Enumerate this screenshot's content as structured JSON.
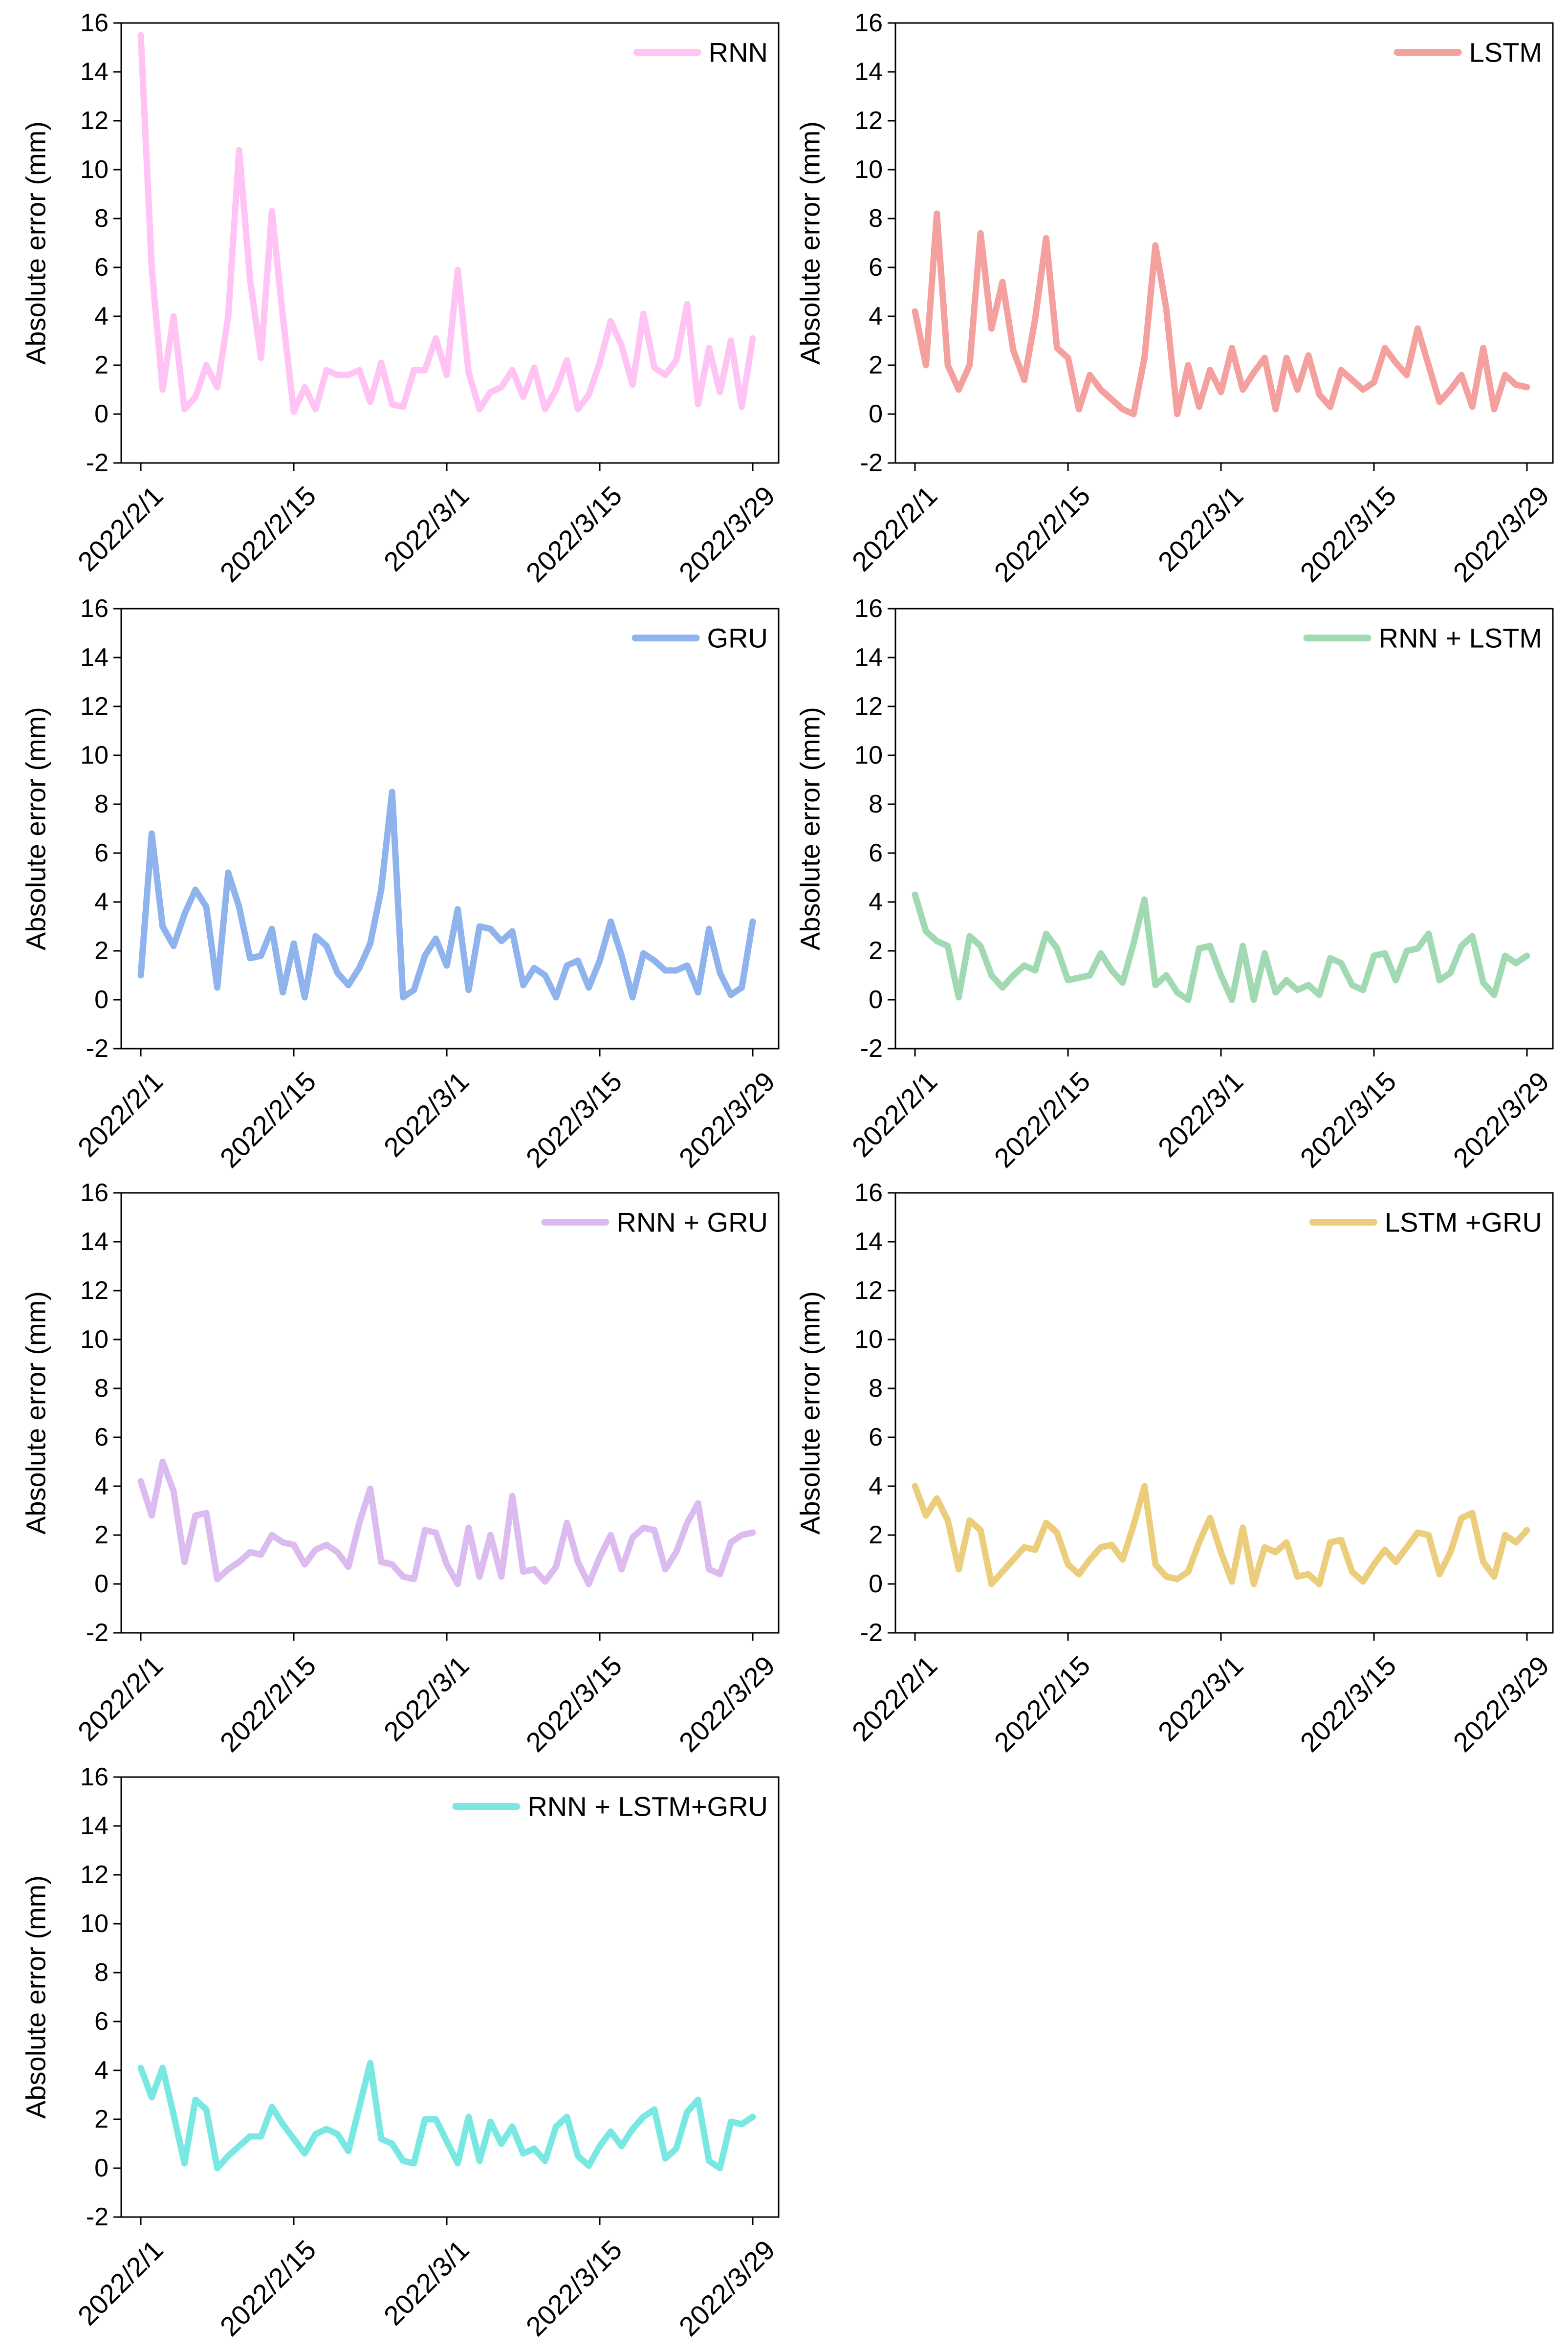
{
  "chart_data": [
    {
      "type": "line",
      "ylabel": "Absolute error (mm)",
      "ylim": [
        -2,
        16
      ],
      "yticks": [
        -2,
        0,
        2,
        4,
        6,
        8,
        10,
        12,
        14,
        16
      ],
      "xlim": [
        0,
        56
      ],
      "xticks": [
        {
          "day": 0,
          "label": "2022/2/1"
        },
        {
          "day": 14,
          "label": "2022/2/15"
        },
        {
          "day": 28,
          "label": "2022/3/1"
        },
        {
          "day": 42,
          "label": "2022/3/15"
        },
        {
          "day": 56,
          "label": "2022/3/29"
        }
      ],
      "legend_position": "top-right",
      "series": [
        {
          "name": "RNN",
          "color": "#ffc4f4",
          "values": [
            15.5,
            6.0,
            1.0,
            4.0,
            0.2,
            0.7,
            2.0,
            1.1,
            4.0,
            10.8,
            5.5,
            2.3,
            8.3,
            4.0,
            0.1,
            1.1,
            0.2,
            1.8,
            1.6,
            1.6,
            1.8,
            0.5,
            2.1,
            0.4,
            0.3,
            1.8,
            1.8,
            3.1,
            1.6,
            5.9,
            1.7,
            0.2,
            0.9,
            1.1,
            1.8,
            0.7,
            1.9,
            0.2,
            1.0,
            2.2,
            0.2,
            0.8,
            2.1,
            3.8,
            2.8,
            1.2,
            4.1,
            1.9,
            1.6,
            2.2,
            4.5,
            0.4,
            2.7,
            0.9,
            3.0,
            0.3,
            3.1
          ]
        }
      ]
    },
    {
      "type": "line",
      "ylabel": "Absolute error (mm)",
      "ylim": [
        -2,
        16
      ],
      "yticks": [
        -2,
        0,
        2,
        4,
        6,
        8,
        10,
        12,
        14,
        16
      ],
      "xlim": [
        0,
        56
      ],
      "xticks": [
        {
          "day": 0,
          "label": "2022/2/1"
        },
        {
          "day": 14,
          "label": "2022/2/15"
        },
        {
          "day": 28,
          "label": "2022/3/1"
        },
        {
          "day": 42,
          "label": "2022/3/15"
        },
        {
          "day": 56,
          "label": "2022/3/29"
        }
      ],
      "legend_position": "top-right",
      "series": [
        {
          "name": "LSTM",
          "color": "#f4a09f",
          "values": [
            4.2,
            2.0,
            8.2,
            2.0,
            1.0,
            2.0,
            7.4,
            3.5,
            5.4,
            2.6,
            1.4,
            3.9,
            7.2,
            2.7,
            2.3,
            0.2,
            1.6,
            1.0,
            0.6,
            0.2,
            0.0,
            2.3,
            6.9,
            4.3,
            0.0,
            2.0,
            0.3,
            1.8,
            0.9,
            2.7,
            1.0,
            1.7,
            2.3,
            0.2,
            2.3,
            1.0,
            2.4,
            0.8,
            0.3,
            1.8,
            1.4,
            1.0,
            1.3,
            2.7,
            2.1,
            1.6,
            3.5,
            2.0,
            0.5,
            1.0,
            1.6,
            0.3,
            2.7,
            0.2,
            1.6,
            1.2,
            1.1
          ]
        }
      ]
    },
    {
      "type": "line",
      "ylabel": "Absolute error (mm)",
      "ylim": [
        -2,
        16
      ],
      "yticks": [
        -2,
        0,
        2,
        4,
        6,
        8,
        10,
        12,
        14,
        16
      ],
      "xlim": [
        0,
        56
      ],
      "xticks": [
        {
          "day": 0,
          "label": "2022/2/1"
        },
        {
          "day": 14,
          "label": "2022/2/15"
        },
        {
          "day": 28,
          "label": "2022/3/1"
        },
        {
          "day": 42,
          "label": "2022/3/15"
        },
        {
          "day": 56,
          "label": "2022/3/29"
        }
      ],
      "legend_position": "top-right",
      "series": [
        {
          "name": "GRU",
          "color": "#8fb3ec",
          "values": [
            1.0,
            6.8,
            3.0,
            2.2,
            3.5,
            4.5,
            3.8,
            0.5,
            5.2,
            3.8,
            1.7,
            1.8,
            2.9,
            0.3,
            2.3,
            0.1,
            2.6,
            2.2,
            1.1,
            0.6,
            1.3,
            2.3,
            4.5,
            8.5,
            0.1,
            0.4,
            1.8,
            2.5,
            1.4,
            3.7,
            0.4,
            3.0,
            2.9,
            2.4,
            2.8,
            0.6,
            1.3,
            1.0,
            0.1,
            1.4,
            1.6,
            0.5,
            1.6,
            3.2,
            1.8,
            0.1,
            1.9,
            1.6,
            1.2,
            1.2,
            1.4,
            0.3,
            2.9,
            1.1,
            0.2,
            0.5,
            3.2
          ]
        }
      ]
    },
    {
      "type": "line",
      "ylabel": "Absolute error (mm)",
      "ylim": [
        -2,
        16
      ],
      "yticks": [
        -2,
        0,
        2,
        4,
        6,
        8,
        10,
        12,
        14,
        16
      ],
      "xlim": [
        0,
        56
      ],
      "xticks": [
        {
          "day": 0,
          "label": "2022/2/1"
        },
        {
          "day": 14,
          "label": "2022/2/15"
        },
        {
          "day": 28,
          "label": "2022/3/1"
        },
        {
          "day": 42,
          "label": "2022/3/15"
        },
        {
          "day": 56,
          "label": "2022/3/29"
        }
      ],
      "legend_position": "top-right",
      "series": [
        {
          "name": "RNN + LSTM",
          "color": "#a0d9b2",
          "values": [
            4.3,
            2.8,
            2.4,
            2.2,
            0.1,
            2.6,
            2.2,
            1.0,
            0.5,
            1.0,
            1.4,
            1.2,
            2.7,
            2.1,
            0.8,
            0.9,
            1.0,
            1.9,
            1.2,
            0.7,
            2.3,
            4.1,
            0.6,
            1.0,
            0.3,
            0.0,
            2.1,
            2.2,
            1.0,
            0.0,
            2.2,
            0.0,
            1.9,
            0.3,
            0.8,
            0.4,
            0.6,
            0.2,
            1.7,
            1.5,
            0.6,
            0.4,
            1.8,
            1.9,
            0.8,
            2.0,
            2.1,
            2.7,
            0.8,
            1.1,
            2.2,
            2.6,
            0.7,
            0.2,
            1.8,
            1.5,
            1.8
          ]
        }
      ]
    },
    {
      "type": "line",
      "ylabel": "Absolute error (mm)",
      "ylim": [
        -2,
        16
      ],
      "yticks": [
        -2,
        0,
        2,
        4,
        6,
        8,
        10,
        12,
        14,
        16
      ],
      "xlim": [
        0,
        56
      ],
      "xticks": [
        {
          "day": 0,
          "label": "2022/2/1"
        },
        {
          "day": 14,
          "label": "2022/2/15"
        },
        {
          "day": 28,
          "label": "2022/3/1"
        },
        {
          "day": 42,
          "label": "2022/3/15"
        },
        {
          "day": 56,
          "label": "2022/3/29"
        }
      ],
      "legend_position": "top-right",
      "series": [
        {
          "name": "RNN + GRU",
          "color": "#dcbbf0",
          "values": [
            4.2,
            2.8,
            5.0,
            3.8,
            0.9,
            2.8,
            2.9,
            0.2,
            0.6,
            0.9,
            1.3,
            1.2,
            2.0,
            1.7,
            1.6,
            0.8,
            1.4,
            1.6,
            1.3,
            0.7,
            2.5,
            3.9,
            0.9,
            0.8,
            0.3,
            0.2,
            2.2,
            2.1,
            0.8,
            0.0,
            2.3,
            0.3,
            2.0,
            0.3,
            3.6,
            0.5,
            0.6,
            0.1,
            0.7,
            2.5,
            0.9,
            0.0,
            1.1,
            2.0,
            0.6,
            1.9,
            2.3,
            2.2,
            0.6,
            1.3,
            2.5,
            3.3,
            0.6,
            0.4,
            1.7,
            2.0,
            2.1
          ]
        }
      ]
    },
    {
      "type": "line",
      "ylabel": "Absolute error (mm)",
      "ylim": [
        -2,
        16
      ],
      "yticks": [
        -2,
        0,
        2,
        4,
        6,
        8,
        10,
        12,
        14,
        16
      ],
      "xlim": [
        0,
        56
      ],
      "xticks": [
        {
          "day": 0,
          "label": "2022/2/1"
        },
        {
          "day": 14,
          "label": "2022/2/15"
        },
        {
          "day": 28,
          "label": "2022/3/1"
        },
        {
          "day": 42,
          "label": "2022/3/15"
        },
        {
          "day": 56,
          "label": "2022/3/29"
        }
      ],
      "legend_position": "top-right",
      "series": [
        {
          "name": "LSTM +GRU",
          "color": "#ebcd7c",
          "values": [
            4.0,
            2.8,
            3.5,
            2.6,
            0.6,
            2.6,
            2.2,
            0.0,
            0.5,
            1.0,
            1.5,
            1.4,
            2.5,
            2.1,
            0.8,
            0.4,
            1.0,
            1.5,
            1.6,
            1.0,
            2.4,
            4.0,
            0.8,
            0.3,
            0.2,
            0.5,
            1.7,
            2.7,
            1.3,
            0.1,
            2.3,
            0.0,
            1.5,
            1.3,
            1.7,
            0.3,
            0.4,
            0.0,
            1.7,
            1.8,
            0.5,
            0.1,
            0.8,
            1.4,
            0.9,
            1.5,
            2.1,
            2.0,
            0.4,
            1.3,
            2.7,
            2.9,
            0.9,
            0.3,
            2.0,
            1.7,
            2.2
          ]
        }
      ]
    },
    {
      "type": "line",
      "ylabel": "Absolute error (mm)",
      "ylim": [
        -2,
        16
      ],
      "yticks": [
        -2,
        0,
        2,
        4,
        6,
        8,
        10,
        12,
        14,
        16
      ],
      "xlim": [
        0,
        56
      ],
      "xticks": [
        {
          "day": 0,
          "label": "2022/2/1"
        },
        {
          "day": 14,
          "label": "2022/2/15"
        },
        {
          "day": 28,
          "label": "2022/3/1"
        },
        {
          "day": 42,
          "label": "2022/3/15"
        },
        {
          "day": 56,
          "label": "2022/3/29"
        }
      ],
      "legend_position": "top-right",
      "series": [
        {
          "name": "RNN + LSTM+GRU",
          "color": "#7ae8e2",
          "values": [
            4.1,
            2.9,
            4.1,
            2.2,
            0.2,
            2.8,
            2.4,
            0.0,
            0.5,
            0.9,
            1.3,
            1.3,
            2.5,
            1.8,
            1.2,
            0.6,
            1.4,
            1.6,
            1.4,
            0.7,
            2.5,
            4.3,
            1.2,
            1.0,
            0.3,
            0.2,
            2.0,
            2.0,
            1.1,
            0.2,
            2.1,
            0.3,
            1.9,
            1.0,
            1.7,
            0.6,
            0.8,
            0.3,
            1.7,
            2.1,
            0.5,
            0.1,
            0.9,
            1.5,
            0.9,
            1.6,
            2.1,
            2.4,
            0.4,
            0.8,
            2.3,
            2.8,
            0.3,
            0.0,
            1.9,
            1.8,
            2.1
          ]
        }
      ]
    }
  ]
}
